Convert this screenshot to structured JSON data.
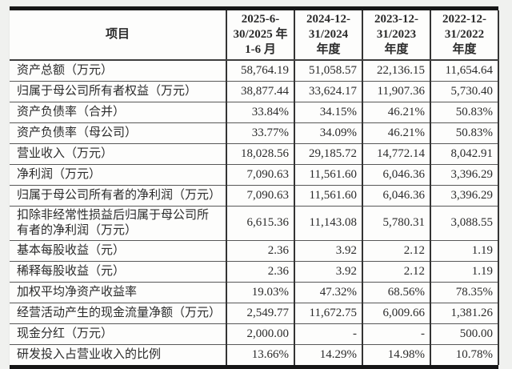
{
  "page": {
    "background_color": "#f0f1ef",
    "border_color": "#161616",
    "text_color": "#2b2b2b"
  },
  "table": {
    "header": {
      "item_label": "项目",
      "periods": [
        "2025-6-\n30/2025 年\n1-6 月",
        "2024-12-\n31/2024\n年度",
        "2023-12-\n31/2023\n年度",
        "2022-12-\n31/2022\n年度"
      ]
    },
    "rows": [
      {
        "label": "资产总额（万元）",
        "values": [
          "58,764.19",
          "51,058.57",
          "22,136.15",
          "11,654.64"
        ]
      },
      {
        "label": "归属于母公司所有者权益（万元）",
        "values": [
          "38,877.44",
          "33,624.17",
          "11,907.36",
          "5,730.40"
        ]
      },
      {
        "label": "资产负债率（合并）",
        "values": [
          "33.84%",
          "34.15%",
          "46.21%",
          "50.83%"
        ]
      },
      {
        "label": "资产负债率（母公司）",
        "values": [
          "33.77%",
          "34.09%",
          "46.21%",
          "50.83%"
        ]
      },
      {
        "label": "营业收入（万元）",
        "values": [
          "18,028.56",
          "29,185.72",
          "14,772.14",
          "8,042.91"
        ]
      },
      {
        "label": "净利润（万元）",
        "values": [
          "7,090.63",
          "11,561.60",
          "6,046.36",
          "3,396.29"
        ]
      },
      {
        "label": "归属于母公司所有者的净利润（万元）",
        "values": [
          "7,090.63",
          "11,561.60",
          "6,046.36",
          "3,396.29"
        ]
      },
      {
        "label": "扣除非经常性损益后归属于母公司所\n有者的净利润（万元）",
        "values": [
          "6,615.36",
          "11,143.08",
          "5,780.31",
          "3,088.55"
        ]
      },
      {
        "label": "基本每股收益（元）",
        "values": [
          "2.36",
          "3.92",
          "2.12",
          "1.19"
        ]
      },
      {
        "label": "稀释每股收益（元）",
        "values": [
          "2.36",
          "3.92",
          "2.12",
          "1.19"
        ]
      },
      {
        "label": "加权平均净资产收益率",
        "values": [
          "19.03%",
          "47.32%",
          "68.56%",
          "78.35%"
        ]
      },
      {
        "label": "经营活动产生的现金流量净额（万元）",
        "values": [
          "2,549.77",
          "11,672.75",
          "6,009.66",
          "1,381.26"
        ]
      },
      {
        "label": "现金分红（万元）",
        "values": [
          "2,000.00",
          "-",
          "-",
          "500.00"
        ]
      },
      {
        "label": "研发投入占营业收入的比例",
        "values": [
          "13.66%",
          "14.29%",
          "14.98%",
          "10.78%"
        ]
      }
    ]
  }
}
